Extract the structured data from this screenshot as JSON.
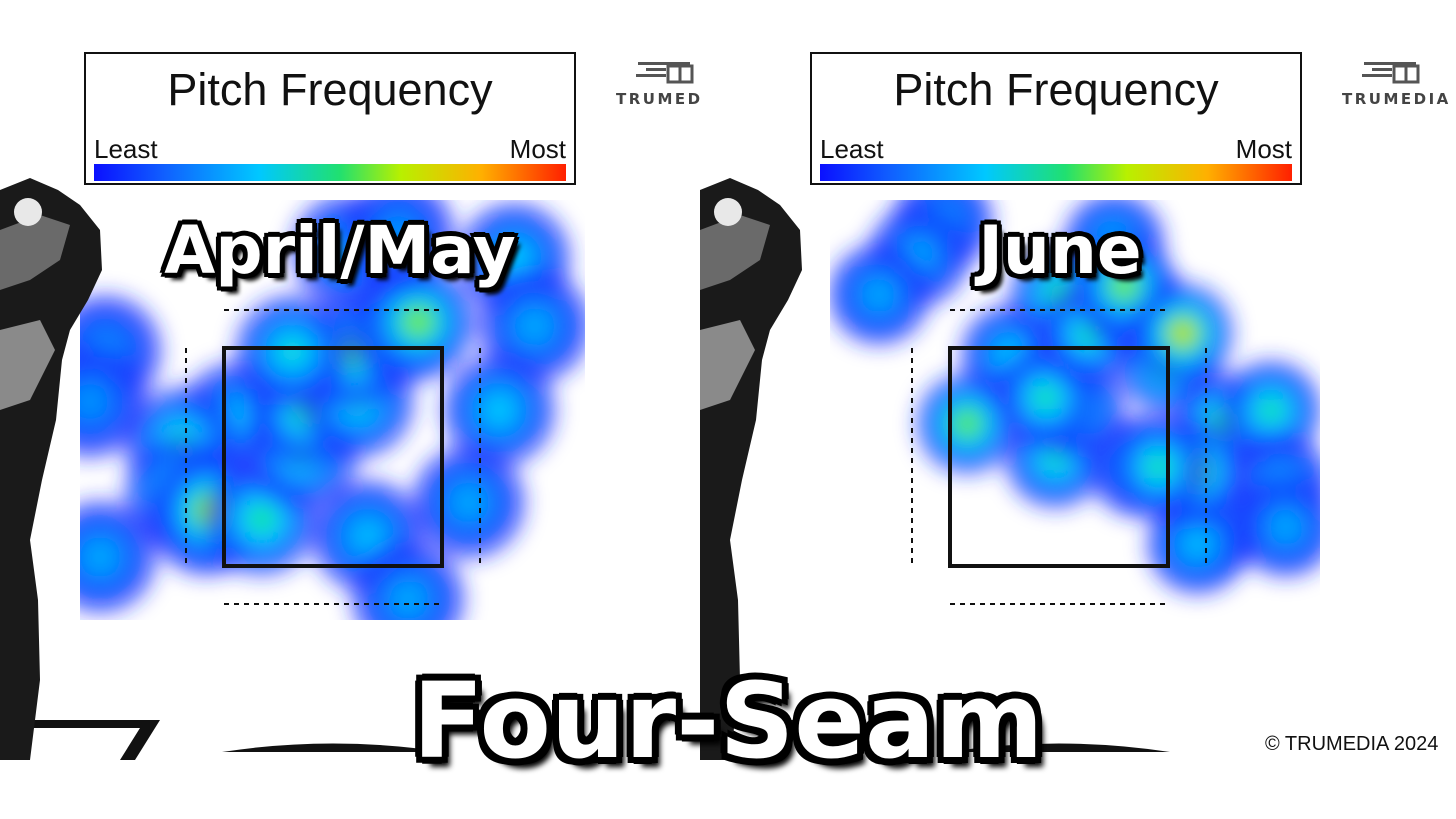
{
  "chart_data": [
    {
      "type": "heatmap",
      "title": "Pitch Frequency",
      "period_label": "April/May",
      "legend": {
        "low_label": "Least",
        "high_label": "Most",
        "colors": [
          "#0b10ff",
          "#00c8ff",
          "#20e070",
          "#b8f000",
          "#ffb000",
          "#ff2000"
        ]
      },
      "hotspots": [
        {
          "x": 0.05,
          "y": 0.36,
          "intensity": 0.25
        },
        {
          "x": 0.31,
          "y": 0.52,
          "intensity": 0.35
        },
        {
          "x": 0.2,
          "y": 0.58,
          "intensity": 0.5
        },
        {
          "x": 0.2,
          "y": 0.7,
          "intensity": 0.5
        },
        {
          "x": 0.25,
          "y": 0.76,
          "intensity": 0.62
        },
        {
          "x": 0.26,
          "y": 0.74,
          "intensity": 0.7
        },
        {
          "x": 0.36,
          "y": 0.76,
          "intensity": 0.52
        },
        {
          "x": 0.44,
          "y": 0.6,
          "intensity": 0.5
        },
        {
          "x": 0.45,
          "y": 0.5,
          "intensity": 0.55
        },
        {
          "x": 0.55,
          "y": 0.48,
          "intensity": 0.45
        },
        {
          "x": 0.54,
          "y": 0.36,
          "intensity": 0.58
        },
        {
          "x": 0.64,
          "y": 0.3,
          "intensity": 0.7
        },
        {
          "x": 0.67,
          "y": 0.29,
          "intensity": 0.62
        },
        {
          "x": 0.42,
          "y": 0.36,
          "intensity": 0.45
        },
        {
          "x": 0.53,
          "y": 0.12,
          "intensity": 0.35
        },
        {
          "x": 0.86,
          "y": 0.14,
          "intensity": 0.38
        },
        {
          "x": 0.9,
          "y": 0.3,
          "intensity": 0.3
        },
        {
          "x": 0.83,
          "y": 0.5,
          "intensity": 0.38
        },
        {
          "x": 0.77,
          "y": 0.72,
          "intensity": 0.3
        },
        {
          "x": 0.57,
          "y": 0.8,
          "intensity": 0.35
        },
        {
          "x": 0.65,
          "y": 0.95,
          "intensity": 0.3
        },
        {
          "x": 0.63,
          "y": 0.08,
          "intensity": 0.25
        },
        {
          "x": 0.02,
          "y": 0.48,
          "intensity": 0.25
        },
        {
          "x": 0.04,
          "y": 0.85,
          "intensity": 0.3
        }
      ]
    },
    {
      "type": "heatmap",
      "title": "Pitch Frequency",
      "period_label": "June",
      "legend": {
        "low_label": "Least",
        "high_label": "Most",
        "colors": [
          "#0b10ff",
          "#00c8ff",
          "#20e070",
          "#b8f000",
          "#ffb000",
          "#ff2000"
        ]
      },
      "hotspots": [
        {
          "x": 0.23,
          "y": 0.05,
          "intensity": 0.28
        },
        {
          "x": 0.18,
          "y": 0.13,
          "intensity": 0.3
        },
        {
          "x": 0.1,
          "y": 0.22,
          "intensity": 0.3
        },
        {
          "x": 0.58,
          "y": 0.1,
          "intensity": 0.35
        },
        {
          "x": 0.46,
          "y": 0.6,
          "intensity": 0.48
        },
        {
          "x": 0.37,
          "y": 0.36,
          "intensity": 0.38
        },
        {
          "x": 0.5,
          "y": 0.48,
          "intensity": 0.45
        },
        {
          "x": 0.44,
          "y": 0.46,
          "intensity": 0.5
        },
        {
          "x": 0.47,
          "y": 0.22,
          "intensity": 0.55
        },
        {
          "x": 0.53,
          "y": 0.31,
          "intensity": 0.5
        },
        {
          "x": 0.62,
          "y": 0.24,
          "intensity": 0.65
        },
        {
          "x": 0.6,
          "y": 0.2,
          "intensity": 0.62
        },
        {
          "x": 0.69,
          "y": 0.38,
          "intensity": 0.6
        },
        {
          "x": 0.72,
          "y": 0.31,
          "intensity": 0.72
        },
        {
          "x": 0.8,
          "y": 0.52,
          "intensity": 0.55
        },
        {
          "x": 0.9,
          "y": 0.49,
          "intensity": 0.5
        },
        {
          "x": 0.28,
          "y": 0.52,
          "intensity": 0.6
        },
        {
          "x": 0.92,
          "y": 0.66,
          "intensity": 0.3
        },
        {
          "x": 0.78,
          "y": 0.76,
          "intensity": 0.45
        },
        {
          "x": 0.75,
          "y": 0.8,
          "intensity": 0.35
        },
        {
          "x": 0.93,
          "y": 0.76,
          "intensity": 0.3
        },
        {
          "x": 0.74,
          "y": 0.63,
          "intensity": 0.7
        },
        {
          "x": 0.63,
          "y": 0.62,
          "intensity": 0.45
        },
        {
          "x": 0.67,
          "y": 0.62,
          "intensity": 0.5
        }
      ]
    }
  ],
  "logo_text": "TRUMEDIA",
  "subtitle": "Four-Seam",
  "copyright": "© TRUMEDIA 2024"
}
